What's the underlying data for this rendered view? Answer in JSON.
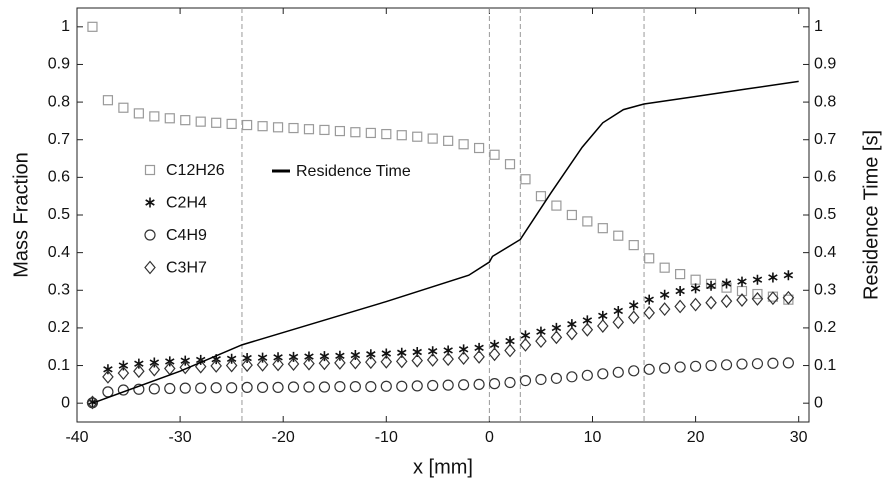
{
  "chart_data": {
    "type": "scatter",
    "xlabel": "x [mm]",
    "ylabel": "Mass Fraction",
    "y2label": "Residence Time [s]",
    "xlim": [
      -40,
      31
    ],
    "xticks": [
      -40,
      -30,
      -20,
      -10,
      0,
      10,
      20,
      30
    ],
    "ylim": [
      -0.05,
      1.05
    ],
    "yticks": [
      0,
      0.1,
      0.2,
      0.3,
      0.4,
      0.5,
      0.6,
      0.7,
      0.8,
      0.9,
      1
    ],
    "y2lim": [
      -0.05,
      1.05
    ],
    "y2ticks": [
      0,
      0.1,
      0.2,
      0.3,
      0.4,
      0.5,
      0.6,
      0.7,
      0.8,
      0.9,
      1
    ],
    "vlines": [
      -24,
      0,
      3,
      15
    ],
    "x": [
      -38.5,
      -37,
      -35.5,
      -34,
      -32.5,
      -31,
      -29.5,
      -28,
      -26.5,
      -25,
      -23.5,
      -22,
      -20.5,
      -19,
      -17.5,
      -16,
      -14.5,
      -13,
      -11.5,
      -10,
      -8.5,
      -7,
      -5.5,
      -4,
      -2.5,
      -1,
      0.5,
      2,
      3.5,
      5,
      6.5,
      8,
      9.5,
      11,
      12.5,
      14,
      15.5,
      17,
      18.5,
      20,
      21.5,
      23,
      24.5,
      26,
      27.5,
      29
    ],
    "series": [
      {
        "name": "C12H26",
        "marker": "square",
        "color": "#9a9a9a",
        "values": [
          1.0,
          0.805,
          0.785,
          0.77,
          0.762,
          0.757,
          0.752,
          0.748,
          0.745,
          0.742,
          0.739,
          0.736,
          0.733,
          0.731,
          0.728,
          0.726,
          0.723,
          0.72,
          0.718,
          0.715,
          0.712,
          0.708,
          0.703,
          0.697,
          0.688,
          0.678,
          0.66,
          0.635,
          0.595,
          0.55,
          0.525,
          0.5,
          0.483,
          0.465,
          0.445,
          0.42,
          0.385,
          0.36,
          0.343,
          0.328,
          0.317,
          0.307,
          0.298,
          0.29,
          0.283,
          0.275
        ]
      },
      {
        "name": "C2H4",
        "marker": "star",
        "color": "#111111",
        "values": [
          0.003,
          0.09,
          0.1,
          0.105,
          0.108,
          0.111,
          0.113,
          0.115,
          0.117,
          0.118,
          0.12,
          0.121,
          0.122,
          0.123,
          0.124,
          0.125,
          0.126,
          0.128,
          0.13,
          0.132,
          0.134,
          0.136,
          0.138,
          0.14,
          0.143,
          0.147,
          0.155,
          0.165,
          0.18,
          0.19,
          0.2,
          0.21,
          0.22,
          0.232,
          0.245,
          0.26,
          0.275,
          0.288,
          0.298,
          0.305,
          0.312,
          0.318,
          0.323,
          0.328,
          0.334,
          0.34
        ]
      },
      {
        "name": "C4H9",
        "marker": "circle",
        "color": "#333333",
        "values": [
          0.001,
          0.03,
          0.035,
          0.037,
          0.038,
          0.039,
          0.04,
          0.04,
          0.041,
          0.041,
          0.042,
          0.042,
          0.042,
          0.043,
          0.043,
          0.043,
          0.044,
          0.044,
          0.044,
          0.045,
          0.045,
          0.046,
          0.047,
          0.048,
          0.049,
          0.05,
          0.052,
          0.055,
          0.06,
          0.063,
          0.066,
          0.07,
          0.074,
          0.078,
          0.082,
          0.086,
          0.09,
          0.093,
          0.096,
          0.098,
          0.1,
          0.102,
          0.104,
          0.105,
          0.106,
          0.107
        ]
      },
      {
        "name": "C3H7",
        "marker": "diamond",
        "color": "#333333",
        "values": [
          0.002,
          0.07,
          0.08,
          0.085,
          0.089,
          0.092,
          0.095,
          0.097,
          0.099,
          0.1,
          0.101,
          0.102,
          0.103,
          0.104,
          0.105,
          0.106,
          0.107,
          0.108,
          0.109,
          0.11,
          0.111,
          0.113,
          0.115,
          0.117,
          0.12,
          0.123,
          0.13,
          0.14,
          0.155,
          0.165,
          0.175,
          0.185,
          0.195,
          0.205,
          0.215,
          0.228,
          0.24,
          0.25,
          0.257,
          0.262,
          0.267,
          0.271,
          0.274,
          0.277,
          0.279,
          0.28
        ]
      },
      {
        "name": "Residence Time",
        "type": "line",
        "axis": "y2",
        "color": "#000000",
        "x": [
          -38.5,
          -30,
          -24,
          -10,
          -2,
          0,
          0.3,
          3,
          6,
          9,
          11,
          13,
          15,
          20,
          25,
          30
        ],
        "values": [
          0,
          0.085,
          0.155,
          0.27,
          0.34,
          0.375,
          0.39,
          0.435,
          0.56,
          0.68,
          0.745,
          0.78,
          0.795,
          0.815,
          0.835,
          0.855
        ]
      }
    ]
  }
}
